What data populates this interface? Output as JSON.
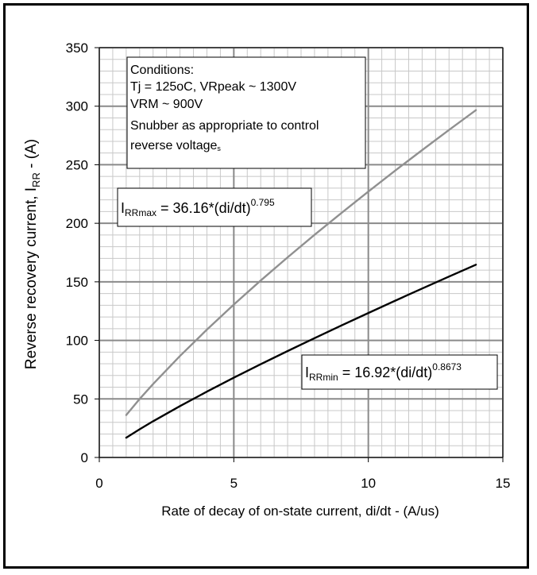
{
  "chart_data": {
    "type": "line",
    "xlabel": "Rate of decay of on-state current, di/dt - (A/us)",
    "ylabel_main": "Reverse recovery current, I",
    "ylabel_sub": "RR",
    "ylabel_tail": " - (A)",
    "xlim": [
      0,
      15
    ],
    "ylim": [
      0,
      350
    ],
    "x_ticks": [
      "0",
      "5",
      "10",
      "15"
    ],
    "y_ticks": [
      "0",
      "50",
      "100",
      "150",
      "200",
      "250",
      "300",
      "350"
    ],
    "grid": true,
    "series": [
      {
        "key": "irrmax",
        "color": "#909090",
        "x": [
          1,
          1.5,
          2,
          3,
          4,
          5,
          6,
          7,
          8,
          9,
          10,
          11,
          12,
          13,
          14
        ],
        "y": [
          36.2,
          50.0,
          62.7,
          86.7,
          109.2,
          130.6,
          151.1,
          170.9,
          190.1,
          208.8,
          227.1,
          245.0,
          262.5,
          279.7,
          296.6
        ]
      },
      {
        "key": "irrmin",
        "color": "#000000",
        "x": [
          1,
          1.5,
          2,
          3,
          4,
          5,
          6,
          7,
          8,
          9,
          10,
          11,
          12,
          13,
          14
        ],
        "y": [
          16.9,
          24.1,
          30.9,
          43.9,
          56.2,
          68.1,
          79.6,
          90.9,
          101.9,
          112.7,
          123.4,
          133.9,
          144.3,
          154.5,
          164.6
        ]
      }
    ],
    "conditions": [
      "Conditions:",
      "Tj = 125oC, VRpeak ~ 1300V",
      "VRM ~ 900V",
      "Snubber as appropriate to control",
      "reverse voltage",
      "s"
    ],
    "equations": {
      "max": {
        "i": "I",
        "sub": "RRmax",
        "body": " = 36.16*(di/dt)",
        "exp": "0.795"
      },
      "min": {
        "i": "I",
        "sub": "RRmin",
        "body": " = 16.92*(di/dt)",
        "exp": "0.8673"
      }
    }
  }
}
